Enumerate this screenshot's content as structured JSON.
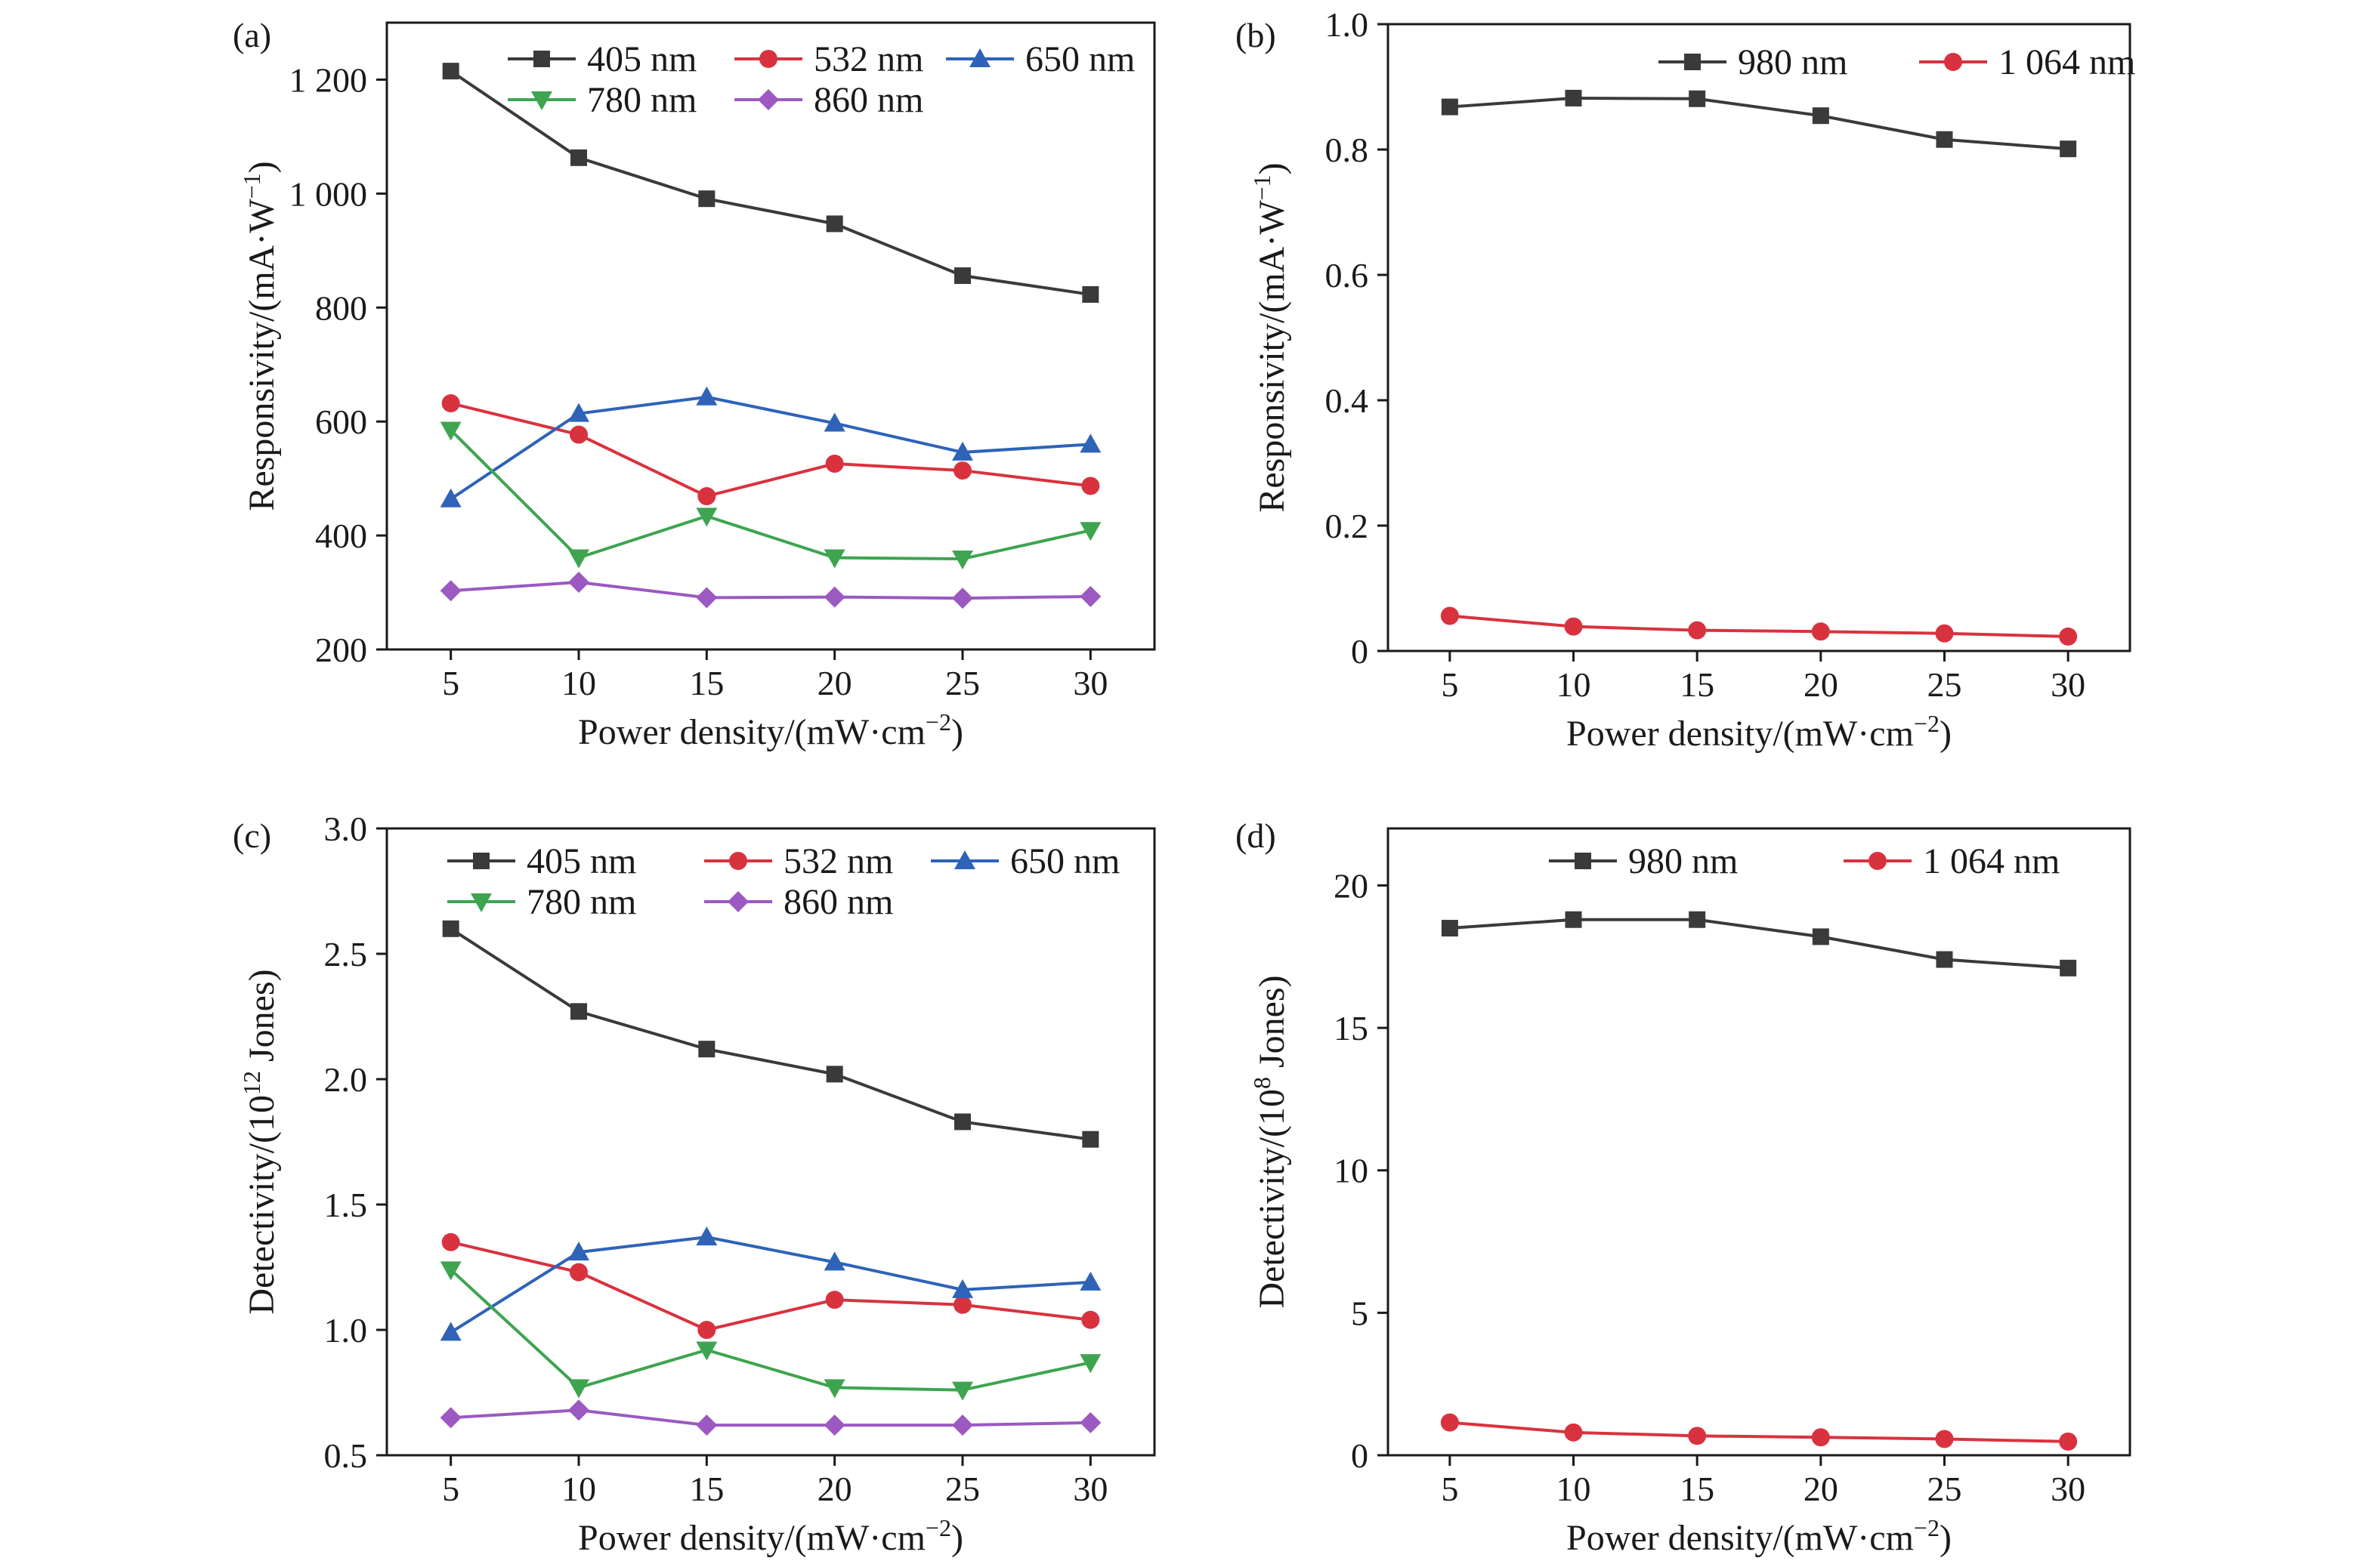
{
  "chart_data": [
    {
      "panel_label": "(a)",
      "type": "line",
      "x": [
        5,
        10,
        15,
        20,
        25,
        30
      ],
      "xlabel": "Power density/(mW·cm",
      "xlabel_sup": "−2",
      "xlabel_tail": ")",
      "ylabel": "Responsivity/(mA·W",
      "ylabel_sup": "−1",
      "ylabel_tail": ")",
      "xlim": [
        2.5,
        32.5
      ],
      "ylim": [
        200,
        1300
      ],
      "xticks": [
        "5",
        "10",
        "15",
        "20",
        "25",
        "30"
      ],
      "yticks": [
        {
          "v": 200,
          "label": "200"
        },
        {
          "v": 400,
          "label": "400"
        },
        {
          "v": 600,
          "label": "600"
        },
        {
          "v": 800,
          "label": "800"
        },
        {
          "v": 1000,
          "label": "1 000"
        },
        {
          "v": 1200,
          "label": "1 200"
        }
      ],
      "legend_position": "top",
      "legend_rows": [
        [
          0,
          1,
          2
        ],
        [
          3,
          4
        ]
      ],
      "series": [
        {
          "name": "405 nm",
          "color": "#3a3a3a",
          "marker": "square",
          "values": [
            1215,
            1063,
            991,
            947,
            856,
            823
          ]
        },
        {
          "name": "532 nm",
          "color": "#d9323f",
          "marker": "circle",
          "values": [
            632,
            577,
            469,
            526,
            514,
            487
          ]
        },
        {
          "name": "650 nm",
          "color": "#2e63b8",
          "marker": "triangle-up",
          "values": [
            464,
            614,
            643,
            597,
            546,
            560
          ]
        },
        {
          "name": "780 nm",
          "color": "#3ea450",
          "marker": "triangle-down",
          "values": [
            585,
            361,
            434,
            361,
            359,
            409
          ]
        },
        {
          "name": "860 nm",
          "color": "#9b59c1",
          "marker": "diamond",
          "values": [
            303,
            318,
            291,
            292,
            290,
            293
          ]
        }
      ]
    },
    {
      "panel_label": "(b)",
      "type": "line",
      "x": [
        5,
        10,
        15,
        20,
        25,
        30
      ],
      "xlabel": "Power density/(mW·cm",
      "xlabel_sup": "−2",
      "xlabel_tail": ")",
      "ylabel": "Responsivity/(mA·W",
      "ylabel_sup": "−1",
      "ylabel_tail": ")",
      "xlim": [
        2.5,
        32.5
      ],
      "ylim": [
        0,
        1.0
      ],
      "xticks": [
        "5",
        "10",
        "15",
        "20",
        "25",
        "30"
      ],
      "yticks": [
        {
          "v": 0,
          "label": "0"
        },
        {
          "v": 0.2,
          "label": "0.2"
        },
        {
          "v": 0.4,
          "label": "0.4"
        },
        {
          "v": 0.6,
          "label": "0.6"
        },
        {
          "v": 0.8,
          "label": "0.8"
        },
        {
          "v": 1.0,
          "label": "1.0"
        }
      ],
      "legend_position": "top",
      "legend_rows": [
        [
          0,
          1
        ]
      ],
      "series": [
        {
          "name": "980 nm",
          "color": "#3a3a3a",
          "marker": "square",
          "values": [
            0.868,
            0.882,
            0.881,
            0.854,
            0.816,
            0.801
          ]
        },
        {
          "name": "1 064 nm",
          "color": "#d9323f",
          "marker": "circle",
          "values": [
            0.056,
            0.039,
            0.033,
            0.031,
            0.028,
            0.023
          ]
        }
      ]
    },
    {
      "panel_label": "(c)",
      "type": "line",
      "x": [
        5,
        10,
        15,
        20,
        25,
        30
      ],
      "xlabel": "Power density/(mW·cm",
      "xlabel_sup": "−2",
      "xlabel_tail": ")",
      "ylabel": "Detectivity/(10",
      "ylabel_sup": "12",
      "ylabel_tail": " Jones)",
      "xlim": [
        2.5,
        32.5
      ],
      "ylim": [
        0.5,
        3.0
      ],
      "xticks": [
        "5",
        "10",
        "15",
        "20",
        "25",
        "30"
      ],
      "yticks": [
        {
          "v": 0.5,
          "label": "0.5"
        },
        {
          "v": 1.0,
          "label": "1.0"
        },
        {
          "v": 1.5,
          "label": "1.5"
        },
        {
          "v": 2.0,
          "label": "2.0"
        },
        {
          "v": 2.5,
          "label": "2.5"
        },
        {
          "v": 3.0,
          "label": "3.0"
        }
      ],
      "legend_position": "top",
      "legend_rows": [
        [
          0,
          1,
          2
        ],
        [
          3,
          4
        ]
      ],
      "series": [
        {
          "name": "405 nm",
          "color": "#3a3a3a",
          "marker": "square",
          "values": [
            2.6,
            2.27,
            2.12,
            2.02,
            1.83,
            1.76
          ]
        },
        {
          "name": "532 nm",
          "color": "#d9323f",
          "marker": "circle",
          "values": [
            1.35,
            1.23,
            1.0,
            1.12,
            1.1,
            1.04
          ]
        },
        {
          "name": "650 nm",
          "color": "#2e63b8",
          "marker": "triangle-up",
          "values": [
            0.99,
            1.31,
            1.37,
            1.27,
            1.16,
            1.19
          ]
        },
        {
          "name": "780 nm",
          "color": "#3ea450",
          "marker": "triangle-down",
          "values": [
            1.24,
            0.77,
            0.92,
            0.77,
            0.76,
            0.87
          ]
        },
        {
          "name": "860 nm",
          "color": "#9b59c1",
          "marker": "diamond",
          "values": [
            0.65,
            0.68,
            0.62,
            0.62,
            0.62,
            0.63
          ]
        }
      ]
    },
    {
      "panel_label": "(d)",
      "type": "line",
      "x": [
        5,
        10,
        15,
        20,
        25,
        30
      ],
      "xlabel": "Power density/(mW·cm",
      "xlabel_sup": "−2",
      "xlabel_tail": ")",
      "ylabel": "Detectivity/(10",
      "ylabel_sup": "8",
      "ylabel_tail": " Jones)",
      "xlim": [
        2.5,
        32.5
      ],
      "ylim": [
        0,
        22
      ],
      "xticks": [
        "5",
        "10",
        "15",
        "20",
        "25",
        "30"
      ],
      "yticks": [
        {
          "v": 0,
          "label": "0"
        },
        {
          "v": 5,
          "label": "5"
        },
        {
          "v": 10,
          "label": "10"
        },
        {
          "v": 15,
          "label": "15"
        },
        {
          "v": 20,
          "label": "20"
        }
      ],
      "legend_position": "top",
      "legend_rows": [
        [
          0,
          1
        ]
      ],
      "series": [
        {
          "name": "980 nm",
          "color": "#3a3a3a",
          "marker": "square",
          "values": [
            18.5,
            18.8,
            18.8,
            18.2,
            17.4,
            17.1
          ]
        },
        {
          "name": "1 064 nm",
          "color": "#d9323f",
          "marker": "circle",
          "values": [
            1.15,
            0.8,
            0.68,
            0.63,
            0.57,
            0.48
          ]
        }
      ]
    }
  ]
}
